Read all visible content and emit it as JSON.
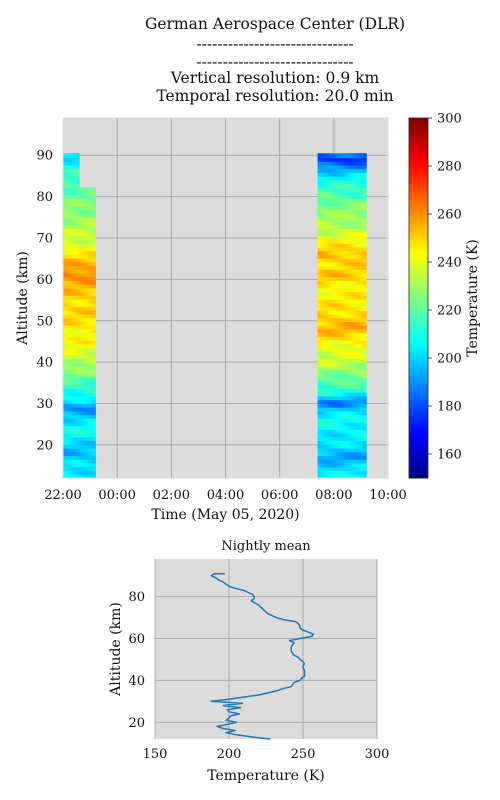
{
  "header": {
    "institution": "German Aerospace Center (DLR)",
    "line2": "------------------------------",
    "line3": "------------------------------",
    "vertical_resolution": "Vertical resolution: 0.9 km",
    "temporal_resolution": "Temporal resolution: 20.0 min"
  },
  "colors": {
    "axes_bg": "#dcdcdc",
    "grid": "#a9a9a9",
    "line": "#1f77b4"
  },
  "chart_data": [
    {
      "type": "heatmap",
      "title": "",
      "xlabel": "Time (May 05, 2020)",
      "ylabel": "Altitude (km)",
      "x_ticks": [
        "22:00",
        "00:00",
        "02:00",
        "04:00",
        "06:00",
        "08:00",
        "10:00"
      ],
      "x_tick_hours": [
        22,
        24,
        26,
        28,
        30,
        32,
        34
      ],
      "xlim_hours": [
        22,
        34
      ],
      "ylim": [
        12,
        99
      ],
      "y_ticks": [
        20,
        30,
        40,
        50,
        60,
        70,
        80,
        90
      ],
      "colorbar": {
        "label": "Temperature (K)",
        "range": [
          150,
          300
        ],
        "ticks": [
          160,
          180,
          200,
          220,
          240,
          260,
          280,
          300
        ]
      },
      "observation_windows": [
        {
          "start_hour": 22.0,
          "end_hour": 23.2,
          "profile": [
            [
              12,
              205
            ],
            [
              15,
              202
            ],
            [
              18,
              196
            ],
            [
              21,
              203
            ],
            [
              24,
              208
            ],
            [
              27,
              200
            ],
            [
              29,
              188
            ],
            [
              31,
              204
            ],
            [
              34,
              214
            ],
            [
              38,
              226
            ],
            [
              42,
              238
            ],
            [
              46,
              245
            ],
            [
              50,
              248
            ],
            [
              54,
              250
            ],
            [
              58,
              252
            ],
            [
              61,
              262
            ],
            [
              63,
              258
            ],
            [
              66,
              246
            ],
            [
              70,
              236
            ],
            [
              74,
              230
            ],
            [
              78,
              226
            ],
            [
              82,
              218
            ],
            [
              86,
              212
            ],
            [
              88,
              208
            ],
            [
              90,
              202
            ]
          ]
        },
        {
          "start_hour": 31.4,
          "end_hour": 33.2,
          "profile": [
            [
              12,
              206
            ],
            [
              15,
              200
            ],
            [
              17,
              193
            ],
            [
              20,
              202
            ],
            [
              23,
              205
            ],
            [
              26,
              208
            ],
            [
              29,
              198
            ],
            [
              30,
              184
            ],
            [
              32,
              205
            ],
            [
              35,
              218
            ],
            [
              39,
              232
            ],
            [
              43,
              240
            ],
            [
              46,
              248
            ],
            [
              48,
              255
            ],
            [
              50,
              252
            ],
            [
              54,
              246
            ],
            [
              58,
              244
            ],
            [
              61,
              252
            ],
            [
              63,
              248
            ],
            [
              66,
              254
            ],
            [
              70,
              240
            ],
            [
              74,
              230
            ],
            [
              78,
              225
            ],
            [
              82,
              214
            ],
            [
              85,
              205
            ],
            [
              87,
              192
            ],
            [
              89,
              175
            ],
            [
              90,
              185
            ]
          ]
        }
      ]
    },
    {
      "type": "line",
      "title": "Nightly mean",
      "xlabel": "Temperature (K)",
      "ylabel": "Altitude (km)",
      "xlim": [
        150,
        300
      ],
      "ylim": [
        12,
        98
      ],
      "x_ticks": [
        150,
        200,
        250,
        300
      ],
      "y_ticks": [
        20,
        40,
        60,
        80
      ],
      "series": [
        {
          "name": "Nightly mean",
          "points": [
            [
              228,
              12
            ],
            [
              215,
              13
            ],
            [
              205,
              14
            ],
            [
              198,
              15
            ],
            [
              204,
              16
            ],
            [
              196,
              17
            ],
            [
              192,
              18
            ],
            [
              199,
              19
            ],
            [
              205,
              20
            ],
            [
              198,
              21
            ],
            [
              200,
              22
            ],
            [
              201,
              23
            ],
            [
              207,
              24
            ],
            [
              200,
              25
            ],
            [
              199,
              26
            ],
            [
              208,
              27
            ],
            [
              196,
              28
            ],
            [
              209,
              29
            ],
            [
              188,
              30
            ],
            [
              200,
              31
            ],
            [
              210,
              32
            ],
            [
              220,
              33
            ],
            [
              226,
              34
            ],
            [
              232,
              35
            ],
            [
              236,
              36
            ],
            [
              242,
              37
            ],
            [
              243,
              38
            ],
            [
              244,
              39
            ],
            [
              248,
              40
            ],
            [
              249,
              41
            ],
            [
              251,
              42
            ],
            [
              251,
              43
            ],
            [
              251,
              44
            ],
            [
              251,
              45
            ],
            [
              250,
              46
            ],
            [
              250,
              47
            ],
            [
              251,
              48
            ],
            [
              250,
              49
            ],
            [
              248,
              50
            ],
            [
              247,
              51
            ],
            [
              244,
              52
            ],
            [
              243,
              53
            ],
            [
              242,
              54
            ],
            [
              242,
              55
            ],
            [
              242,
              56
            ],
            [
              243,
              57
            ],
            [
              244,
              58
            ],
            [
              241,
              59
            ],
            [
              248,
              60
            ],
            [
              256,
              61
            ],
            [
              257,
              62
            ],
            [
              254,
              63
            ],
            [
              250,
              64
            ],
            [
              248,
              65
            ],
            [
              248,
              66
            ],
            [
              247,
              67
            ],
            [
              245,
              68
            ],
            [
              237,
              69
            ],
            [
              232,
              70
            ],
            [
              226,
              72
            ],
            [
              223,
              74
            ],
            [
              220,
              76
            ],
            [
              215,
              78
            ],
            [
              217,
              79
            ],
            [
              217,
              80
            ],
            [
              216,
              81
            ],
            [
              213,
              82
            ],
            [
              210,
              83
            ],
            [
              204,
              84
            ],
            [
              200,
              85
            ],
            [
              198,
              86
            ],
            [
              196,
              87
            ],
            [
              193,
              88
            ],
            [
              191,
              89
            ],
            [
              188,
              90
            ],
            [
              190,
              91
            ],
            [
              197,
              91
            ],
            [
              192,
              91
            ]
          ]
        }
      ]
    }
  ]
}
